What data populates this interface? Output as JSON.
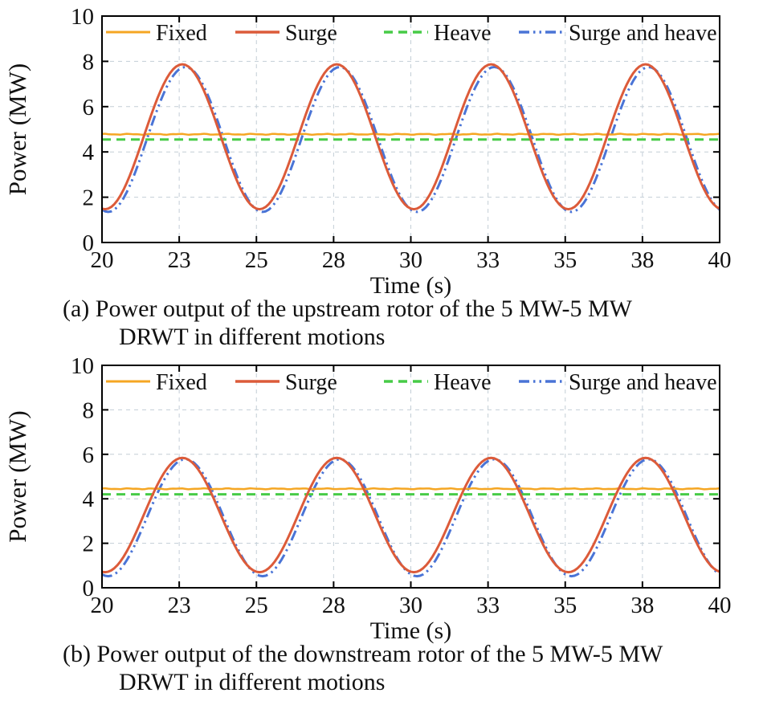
{
  "figure": {
    "background": "#ffffff",
    "axis_color": "#000000",
    "grid_color": "#c3ced6",
    "text_color": "#111111"
  },
  "chart_data": [
    {
      "type": "line",
      "caption_line1": "(a) Power output of the upstream rotor of the 5 MW-5 MW",
      "caption_line2": "DRWT in different motions",
      "xlabel": "Time (s)",
      "ylabel": "Power (MW)",
      "xlim": [
        20,
        40
      ],
      "ylim": [
        0,
        10
      ],
      "grid": true,
      "legend_position": "top-inside-row",
      "xticks": {
        "positions": [
          20,
          22.5,
          25,
          27.5,
          30,
          32.5,
          35,
          37.5,
          40
        ],
        "labels": [
          "20",
          "23",
          "25",
          "28",
          "30",
          "33",
          "35",
          "38",
          "40"
        ]
      },
      "yticks": {
        "positions": [
          0,
          2,
          4,
          6,
          8,
          10
        ],
        "labels": [
          "0",
          "2",
          "4",
          "6",
          "8",
          "10"
        ]
      },
      "x_samples": [
        20,
        20.5,
        21,
        21.5,
        22,
        22.5,
        23,
        23.5,
        24,
        24.5,
        25,
        25.5,
        26,
        26.5,
        27,
        27.5,
        28,
        28.5,
        29,
        29.5,
        30,
        30.5,
        31,
        31.5,
        32,
        32.5,
        33,
        33.5,
        34,
        34.5,
        35,
        35.5,
        36,
        36.5,
        37,
        37.5,
        38,
        38.5,
        39,
        39.5,
        40
      ],
      "series": [
        {
          "name": "Fixed",
          "color": "#F5A623",
          "style": "solid",
          "width": 2.5,
          "model": {
            "kind": "constant",
            "value": 4.78,
            "jitter": 0.03
          },
          "values": [
            4.78,
            4.78,
            4.78,
            4.78,
            4.78,
            4.78,
            4.78,
            4.78,
            4.78,
            4.78,
            4.78,
            4.78,
            4.78,
            4.78,
            4.78,
            4.78,
            4.78,
            4.78,
            4.78,
            4.78,
            4.78,
            4.78,
            4.78,
            4.78,
            4.78,
            4.78,
            4.78,
            4.78,
            4.78,
            4.78,
            4.78,
            4.78,
            4.78,
            4.78,
            4.78,
            4.78,
            4.78,
            4.78,
            4.78,
            4.78,
            4.78
          ]
        },
        {
          "name": "Surge",
          "color": "#DC5B3A",
          "style": "solid",
          "width": 3,
          "model": {
            "kind": "cosine",
            "mean": 4.67,
            "amplitude": 3.2,
            "period": 5,
            "peak_time": 22.6
          },
          "values": [
            1.49,
            1.87,
            3.31,
            5.27,
            7.0,
            7.84,
            7.47,
            6.03,
            4.07,
            2.34,
            1.49,
            1.87,
            3.31,
            5.27,
            7.0,
            7.84,
            7.47,
            6.03,
            4.07,
            2.34,
            1.49,
            1.87,
            3.31,
            5.27,
            7.0,
            7.84,
            7.47,
            6.03,
            4.07,
            2.34,
            1.49,
            1.87,
            3.31,
            5.27,
            7.0,
            7.84,
            7.47,
            6.03,
            4.07,
            2.34,
            1.49
          ]
        },
        {
          "name": "Heave",
          "color": "#47CB47",
          "style": "dashed",
          "width": 3,
          "model": {
            "kind": "constant",
            "value": 4.55,
            "jitter": 0
          },
          "values": [
            4.55,
            4.55,
            4.55,
            4.55,
            4.55,
            4.55,
            4.55,
            4.55,
            4.55,
            4.55,
            4.55,
            4.55,
            4.55,
            4.55,
            4.55,
            4.55,
            4.55,
            4.55,
            4.55,
            4.55,
            4.55,
            4.55,
            4.55,
            4.55,
            4.55,
            4.55,
            4.55,
            4.55,
            4.55,
            4.55,
            4.55,
            4.55,
            4.55,
            4.55,
            4.55,
            4.55,
            4.55,
            4.55,
            4.55,
            4.55,
            4.55
          ]
        },
        {
          "name": "Surge and heave",
          "color": "#4A74D6",
          "style": "dash-dot-dot",
          "width": 3,
          "model": {
            "kind": "cosine",
            "mean": 4.55,
            "amplitude": 3.2,
            "period": 5,
            "peak_time": 22.7
          },
          "values": [
            1.45,
            1.57,
            2.84,
            4.75,
            6.59,
            7.65,
            7.53,
            6.27,
            4.35,
            2.51,
            1.45,
            1.57,
            2.84,
            4.75,
            6.59,
            7.65,
            7.53,
            6.27,
            4.35,
            2.51,
            1.45,
            1.57,
            2.84,
            4.75,
            6.59,
            7.65,
            7.53,
            6.27,
            4.35,
            2.51,
            1.45,
            1.57,
            2.84,
            4.75,
            6.59,
            7.65,
            7.53,
            6.27,
            4.35,
            2.51,
            1.45
          ]
        }
      ]
    },
    {
      "type": "line",
      "caption_line1": "(b) Power output of the downstream rotor of the 5 MW-5 MW",
      "caption_line2": "DRWT in different motions",
      "xlabel": "Time (s)",
      "ylabel": "Power (MW)",
      "xlim": [
        20,
        40
      ],
      "ylim": [
        0,
        10
      ],
      "grid": true,
      "legend_position": "top-inside-row",
      "xticks": {
        "positions": [
          20,
          22.5,
          25,
          27.5,
          30,
          32.5,
          35,
          37.5,
          40
        ],
        "labels": [
          "20",
          "23",
          "25",
          "28",
          "30",
          "33",
          "35",
          "38",
          "40"
        ]
      },
      "yticks": {
        "positions": [
          0,
          2,
          4,
          6,
          8,
          10
        ],
        "labels": [
          "0",
          "2",
          "4",
          "6",
          "8",
          "10"
        ]
      },
      "x_samples": [
        20,
        20.5,
        21,
        21.5,
        22,
        22.5,
        23,
        23.5,
        24,
        24.5,
        25,
        25.5,
        26,
        26.5,
        27,
        27.5,
        28,
        28.5,
        29,
        29.5,
        30,
        30.5,
        31,
        31.5,
        32,
        32.5,
        33,
        33.5,
        34,
        34.5,
        35,
        35.5,
        36,
        36.5,
        37,
        37.5,
        38,
        38.5,
        39,
        39.5,
        40
      ],
      "series": [
        {
          "name": "Fixed",
          "color": "#F5A623",
          "style": "solid",
          "width": 2.5,
          "model": {
            "kind": "constant",
            "value": 4.45,
            "jitter": 0.03
          },
          "values": [
            4.45,
            4.45,
            4.45,
            4.45,
            4.45,
            4.45,
            4.45,
            4.45,
            4.45,
            4.45,
            4.45,
            4.45,
            4.45,
            4.45,
            4.45,
            4.45,
            4.45,
            4.45,
            4.45,
            4.45,
            4.45,
            4.45,
            4.45,
            4.45,
            4.45,
            4.45,
            4.45,
            4.45,
            4.45,
            4.45,
            4.45,
            4.45,
            4.45,
            4.45,
            4.45,
            4.45,
            4.45,
            4.45,
            4.45,
            4.45,
            4.45
          ]
        },
        {
          "name": "Surge",
          "color": "#DC5B3A",
          "style": "solid",
          "width": 3,
          "model": {
            "kind": "cosine",
            "mean": 3.27,
            "amplitude": 2.57,
            "period": 5,
            "peak_time": 22.6
          },
          "values": [
            0.72,
            1.02,
            2.18,
            3.75,
            5.14,
            5.82,
            5.52,
            4.36,
            2.79,
            1.4,
            0.72,
            1.02,
            2.18,
            3.75,
            5.14,
            5.82,
            5.52,
            4.36,
            2.79,
            1.4,
            0.72,
            1.02,
            2.18,
            3.75,
            5.14,
            5.82,
            5.52,
            4.36,
            2.79,
            1.4,
            0.72,
            1.02,
            2.18,
            3.75,
            5.14,
            5.82,
            5.52,
            4.36,
            2.79,
            1.4,
            0.72
          ]
        },
        {
          "name": "Heave",
          "color": "#47CB47",
          "style": "dashed",
          "width": 3,
          "model": {
            "kind": "constant",
            "value": 4.2,
            "jitter": 0
          },
          "values": [
            4.2,
            4.2,
            4.2,
            4.2,
            4.2,
            4.2,
            4.2,
            4.2,
            4.2,
            4.2,
            4.2,
            4.2,
            4.2,
            4.2,
            4.2,
            4.2,
            4.2,
            4.2,
            4.2,
            4.2,
            4.2,
            4.2,
            4.2,
            4.2,
            4.2,
            4.2,
            4.2,
            4.2,
            4.2,
            4.2,
            4.2,
            4.2,
            4.2,
            4.2,
            4.2,
            4.2,
            4.2,
            4.2,
            4.2,
            4.2,
            4.2
          ]
        },
        {
          "name": "Surge and heave",
          "color": "#4A74D6",
          "style": "dash-dot-dot",
          "width": 3,
          "model": {
            "kind": "cosine",
            "mean": 3.15,
            "amplitude": 2.63,
            "period": 5,
            "peak_time": 22.7
          },
          "values": [
            0.6,
            0.7,
            1.74,
            3.32,
            4.83,
            5.7,
            5.6,
            4.56,
            2.98,
            1.47,
            0.6,
            0.7,
            1.74,
            3.32,
            4.83,
            5.7,
            5.6,
            4.56,
            2.98,
            1.47,
            0.6,
            0.7,
            1.74,
            3.32,
            4.83,
            5.7,
            5.6,
            4.56,
            2.98,
            1.47,
            0.6,
            0.7,
            1.74,
            3.32,
            4.83,
            5.7,
            5.6,
            4.56,
            2.98,
            1.47,
            0.6
          ]
        }
      ]
    }
  ]
}
